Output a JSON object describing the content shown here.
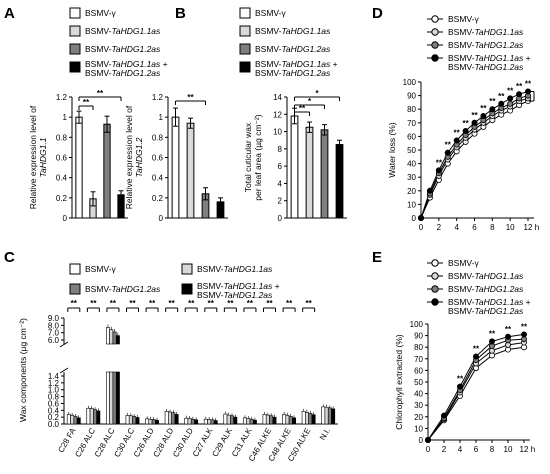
{
  "panel_labels": [
    "A",
    "B",
    "C",
    "D",
    "E"
  ],
  "legends": {
    "top": [
      "BSMV-γ",
      "BSMV-TaHDG1.1as",
      "BSMV-TaHDG1.2as",
      "BSMV-TaHDG1.1as + BSMV-TaHDG1.2as"
    ],
    "c": [
      "BSMV-γ",
      "BSMV-TaHDG1.1as",
      "BSMV-TaHDG1.2as",
      "BSMV-TaHDG1.1as + BSMV-TaHDG1.2as"
    ],
    "lines": [
      "BSMV-γ",
      "BSMV-TaHDG1.1as",
      "BSMV-TaHDG1.2as",
      "BSMV-TaHDG1.1as + BSMV-TaHDG1.2as"
    ]
  },
  "colors": {
    "s0": "#ffffff",
    "s1": "#d9d9d9",
    "s2": "#7f7f7f",
    "s3": "#000000"
  },
  "chart_data": [
    {
      "type": "bar",
      "panel": "A",
      "ylabel": "Relative expression level of TaHDG1.1",
      "yticks": [
        0,
        0.2,
        0.4,
        0.6,
        0.8,
        1,
        1.2
      ],
      "ylim": [
        0,
        1.2
      ],
      "values": [
        1.0,
        0.19,
        0.93,
        0.23
      ],
      "errors": [
        0.06,
        0.07,
        0.08,
        0.04
      ],
      "significance": [
        "**",
        "**"
      ]
    },
    {
      "type": "bar",
      "panel": "A",
      "ylabel": "Relative expression level of TaHDG1.2",
      "yticks": [
        0,
        0.2,
        0.4,
        0.6,
        0.8,
        1,
        1.2
      ],
      "ylim": [
        0,
        1.2
      ],
      "values": [
        1.0,
        0.94,
        0.24,
        0.16
      ],
      "errors": [
        0.09,
        0.05,
        0.06,
        0.04
      ],
      "significance": [
        "**"
      ]
    },
    {
      "type": "bar",
      "panel": "B",
      "ylabel": "Total cuticular wax per leaf area (µg cm⁻²)",
      "yticks": [
        0,
        2,
        4,
        6,
        8,
        10,
        12,
        14
      ],
      "ylim": [
        0,
        14
      ],
      "values": [
        11.8,
        10.5,
        10.2,
        8.5
      ],
      "errors": [
        0.9,
        0.6,
        0.6,
        0.5
      ],
      "significance": [
        "*",
        "*",
        "**"
      ]
    },
    {
      "type": "bar",
      "panel": "C",
      "ylabel": "Wax components (µg cm⁻²)",
      "categories": [
        "C28 FA",
        "C26 ALC",
        "C28 ALC",
        "C30 ALC",
        "C26 ALD",
        "C28 ALD",
        "C30 ALD",
        "C27 ALK",
        "C29 ALK",
        "C31 ALK",
        "C46 ALKE",
        "C48 ALKE",
        "C50 ALKE",
        "N.I."
      ],
      "yticks_lower": [
        0,
        0.2,
        0.4,
        0.6,
        0.8,
        1.0,
        1.2,
        1.4
      ],
      "yticks_upper": [
        6.0,
        7.0,
        8.0,
        9.0
      ],
      "series": [
        {
          "name": "BSMV-γ",
          "values": [
            0.28,
            0.46,
            7.7,
            0.25,
            0.15,
            0.37,
            0.17,
            0.14,
            0.29,
            0.18,
            0.28,
            0.28,
            0.37,
            0.5
          ]
        },
        {
          "name": "BSMV-TaHDG1.1as",
          "values": [
            0.25,
            0.45,
            7.4,
            0.24,
            0.14,
            0.35,
            0.16,
            0.13,
            0.26,
            0.16,
            0.26,
            0.25,
            0.34,
            0.49
          ]
        },
        {
          "name": "BSMV-TaHDG1.2as",
          "values": [
            0.22,
            0.42,
            7.1,
            0.22,
            0.13,
            0.33,
            0.14,
            0.12,
            0.24,
            0.14,
            0.24,
            0.22,
            0.31,
            0.47
          ]
        },
        {
          "name": "BSMV-TaHDG1.1as + BSMV-TaHDG1.2as",
          "values": [
            0.18,
            0.38,
            6.6,
            0.19,
            0.11,
            0.28,
            0.12,
            0.1,
            0.2,
            0.11,
            0.2,
            0.18,
            0.27,
            0.44
          ]
        }
      ],
      "significance": [
        "**",
        "**",
        "**",
        "**",
        "**",
        "**",
        "**",
        "**",
        "**",
        "**",
        "**",
        "**",
        "**"
      ]
    },
    {
      "type": "line",
      "panel": "D",
      "ylabel": "Water loss (%)",
      "xunit": "h",
      "x": [
        0,
        1,
        2,
        3,
        4,
        5,
        6,
        7,
        8,
        9,
        10,
        11,
        12
      ],
      "xticks": [
        0,
        2,
        4,
        6,
        8,
        10,
        12
      ],
      "yticks": [
        0,
        10,
        20,
        30,
        40,
        50,
        60,
        70,
        80,
        90,
        100
      ],
      "ylim": [
        0,
        100
      ],
      "series": [
        {
          "name": "BSMV-γ",
          "values": [
            0,
            15,
            28,
            40,
            49,
            56,
            62,
            67,
            72,
            76,
            79,
            83,
            86
          ]
        },
        {
          "name": "BSMV-TaHDG1.1as",
          "values": [
            0,
            17,
            31,
            43,
            52,
            59,
            65,
            70,
            75,
            79,
            82,
            86,
            88
          ]
        },
        {
          "name": "BSMV-TaHDG1.2as",
          "values": [
            0,
            18,
            33,
            45,
            54,
            61,
            67,
            72,
            77,
            81,
            84,
            88,
            90
          ]
        },
        {
          "name": "BSMV-TaHDG1.1as + BSMV-TaHDG1.2as",
          "values": [
            0,
            20,
            35,
            48,
            57,
            64,
            70,
            75,
            80,
            84,
            88,
            91,
            93
          ]
        }
      ],
      "significance": [
        "**"
      ]
    },
    {
      "type": "line",
      "panel": "E",
      "ylabel": "Chlorophyll extracted (%)",
      "xunit": "h",
      "x": [
        0,
        2,
        4,
        6,
        8,
        10,
        12
      ],
      "xticks": [
        0,
        2,
        4,
        6,
        8,
        10,
        12
      ],
      "yticks": [
        0,
        10,
        20,
        30,
        40,
        50,
        60,
        70,
        80,
        90,
        100
      ],
      "ylim": [
        0,
        100
      ],
      "series": [
        {
          "name": "BSMV-γ",
          "values": [
            0,
            17,
            38,
            62,
            73,
            78,
            80
          ]
        },
        {
          "name": "BSMV-TaHDG1.1as",
          "values": [
            0,
            18,
            41,
            66,
            77,
            82,
            84
          ]
        },
        {
          "name": "BSMV-TaHDG1.2as",
          "values": [
            0,
            19,
            43,
            69,
            81,
            86,
            87
          ]
        },
        {
          "name": "BSMV-TaHDG1.1as + BSMV-TaHDG1.2as",
          "values": [
            0,
            21,
            46,
            72,
            85,
            89,
            91
          ]
        }
      ],
      "significance": [
        "**",
        "**",
        "**",
        "**",
        "**"
      ]
    }
  ]
}
